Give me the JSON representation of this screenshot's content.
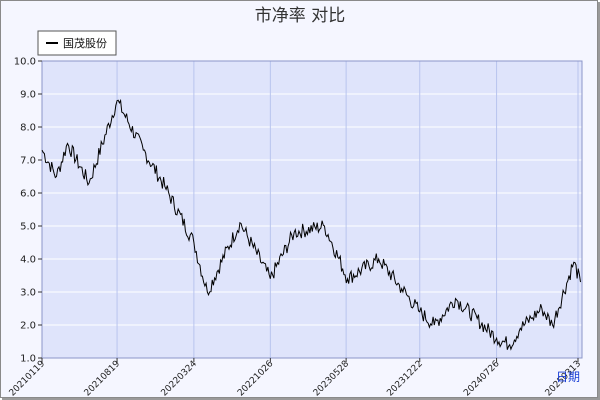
{
  "chart_data": {
    "type": "line",
    "title": "市净率 对比",
    "x_axis_label": "日期",
    "series": [
      {
        "name": "国茂股份",
        "color": "#000000",
        "x": [
          "20210119",
          "20210301",
          "20210401",
          "20210601",
          "20210819",
          "20211101",
          "20220101",
          "20220324",
          "20220501",
          "20220801",
          "20221026",
          "20230101",
          "20230328",
          "20230601",
          "20230828",
          "20231101",
          "20231222",
          "20240201",
          "20240401",
          "20240726",
          "20240901",
          "20241001",
          "20241101",
          "20241201",
          "20241231",
          "20250301",
          "20250320"
        ],
        "values": [
          7.3,
          6.5,
          7.5,
          6.3,
          8.8,
          7.3,
          6.2,
          4.5,
          3.0,
          5.1,
          3.4,
          4.8,
          5.0,
          3.4,
          4.0,
          3.1,
          2.4,
          2.0,
          2.8,
          1.6,
          1.4,
          1.9,
          2.2,
          2.5,
          2.0,
          3.9,
          3.3
        ]
      }
    ],
    "x_ticks": [
      "20210119",
      "20210819",
      "20220324",
      "20221026",
      "20230528",
      "20231222",
      "20240726",
      "20250313"
    ],
    "y_ticks": [
      "1.0",
      "2.0",
      "3.0",
      "4.0",
      "5.0",
      "6.0",
      "7.0",
      "8.0",
      "9.0",
      "10.0"
    ],
    "ylim": [
      1.0,
      10.0
    ],
    "grid": true,
    "legend_position": "top-left",
    "colors": {
      "plot_background": "#dfe4fb",
      "outer_background": "#f5f6ff",
      "grid": "#ffffff",
      "vertical_grid": "#b8c4ee",
      "line": "#000000"
    }
  }
}
